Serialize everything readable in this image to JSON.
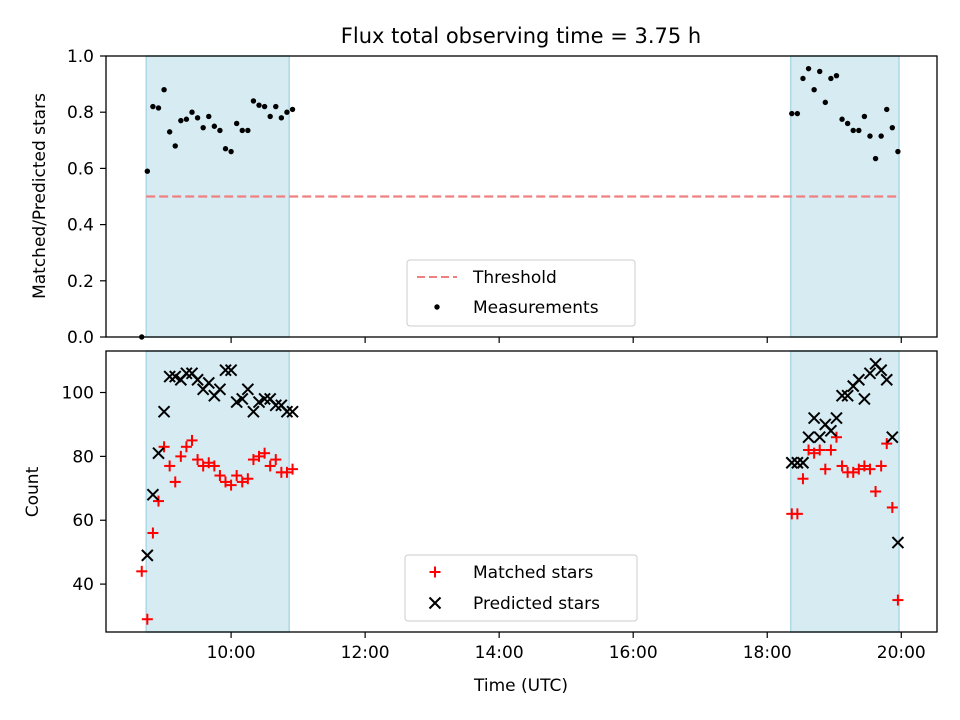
{
  "title": "Flux total observing time = 3.75 h",
  "xlabel": "Time (UTC)",
  "x_ticks": [
    "10:00",
    "12:00",
    "14:00",
    "16:00",
    "18:00",
    "20:00"
  ],
  "colors": {
    "band": "#add8e6",
    "threshold": "#f08080",
    "measurement": "#000000",
    "matched": "#ff0000",
    "predicted": "#000000"
  },
  "chart_data": [
    {
      "type": "scatter",
      "ylabel": "Matched/Predicted stars",
      "ylim": [
        0,
        1.0
      ],
      "xlim": [
        "08:08",
        "20:32"
      ],
      "y_ticks": [
        "0.0",
        "0.2",
        "0.4",
        "0.6",
        "0.8",
        "1.0"
      ],
      "shaded_intervals": [
        [
          "08:44",
          "10:52"
        ],
        [
          "18:21",
          "19:58"
        ]
      ],
      "legend": {
        "placement": "lower-center",
        "entries": [
          "Threshold",
          "Measurements"
        ]
      },
      "threshold": {
        "name": "Threshold",
        "y": 0.5,
        "x_range": [
          "08:44",
          "19:58"
        ],
        "style": "dashed"
      },
      "series": [
        {
          "name": "Measurements",
          "points": [
            [
              "08:40",
              0.0
            ],
            [
              "08:45",
              0.59
            ],
            [
              "08:50",
              0.82
            ],
            [
              "08:55",
              0.815
            ],
            [
              "09:00",
              0.88
            ],
            [
              "09:05",
              0.73
            ],
            [
              "09:10",
              0.68
            ],
            [
              "09:15",
              0.77
            ],
            [
              "09:20",
              0.775
            ],
            [
              "09:25",
              0.8
            ],
            [
              "09:30",
              0.78
            ],
            [
              "09:35",
              0.745
            ],
            [
              "09:40",
              0.785
            ],
            [
              "09:45",
              0.75
            ],
            [
              "09:50",
              0.735
            ],
            [
              "09:55",
              0.67
            ],
            [
              "10:00",
              0.66
            ],
            [
              "10:05",
              0.76
            ],
            [
              "10:10",
              0.735
            ],
            [
              "10:15",
              0.735
            ],
            [
              "10:20",
              0.84
            ],
            [
              "10:25",
              0.825
            ],
            [
              "10:30",
              0.82
            ],
            [
              "10:35",
              0.785
            ],
            [
              "10:40",
              0.82
            ],
            [
              "10:45",
              0.78
            ],
            [
              "10:50",
              0.8
            ],
            [
              "10:55",
              0.81
            ],
            [
              "18:22",
              0.795
            ],
            [
              "18:27",
              0.795
            ],
            [
              "18:32",
              0.92
            ],
            [
              "18:37",
              0.955
            ],
            [
              "18:42",
              0.88
            ],
            [
              "18:47",
              0.945
            ],
            [
              "18:52",
              0.835
            ],
            [
              "18:57",
              0.92
            ],
            [
              "19:02",
              0.93
            ],
            [
              "19:07",
              0.775
            ],
            [
              "19:12",
              0.76
            ],
            [
              "19:17",
              0.735
            ],
            [
              "19:22",
              0.735
            ],
            [
              "19:27",
              0.785
            ],
            [
              "19:32",
              0.715
            ],
            [
              "19:37",
              0.635
            ],
            [
              "19:42",
              0.715
            ],
            [
              "19:47",
              0.81
            ],
            [
              "19:52",
              0.745
            ],
            [
              "19:57",
              0.66
            ]
          ]
        }
      ]
    },
    {
      "type": "scatter",
      "ylabel": "Count",
      "ylim": [
        25,
        113
      ],
      "xlim": [
        "08:08",
        "20:32"
      ],
      "y_ticks": [
        "40",
        "60",
        "80",
        "100"
      ],
      "shaded_intervals": [
        [
          "08:44",
          "10:52"
        ],
        [
          "18:21",
          "19:58"
        ]
      ],
      "legend": {
        "placement": "lower-center",
        "entries": [
          "Matched stars",
          "Predicted stars"
        ]
      },
      "series": [
        {
          "name": "Matched stars",
          "marker": "plus",
          "points": [
            [
              "08:40",
              44
            ],
            [
              "08:45",
              29
            ],
            [
              "08:50",
              56
            ],
            [
              "08:55",
              66
            ],
            [
              "09:00",
              83
            ],
            [
              "09:05",
              77
            ],
            [
              "09:10",
              72
            ],
            [
              "09:15",
              80
            ],
            [
              "09:20",
              83
            ],
            [
              "09:25",
              85
            ],
            [
              "09:30",
              79
            ],
            [
              "09:35",
              77
            ],
            [
              "09:40",
              78
            ],
            [
              "09:45",
              77
            ],
            [
              "09:50",
              74
            ],
            [
              "09:55",
              72
            ],
            [
              "10:00",
              71
            ],
            [
              "10:05",
              74
            ],
            [
              "10:10",
              72
            ],
            [
              "10:15",
              73
            ],
            [
              "10:20",
              79
            ],
            [
              "10:25",
              80
            ],
            [
              "10:30",
              81
            ],
            [
              "10:35",
              77
            ],
            [
              "10:40",
              79
            ],
            [
              "10:45",
              75
            ],
            [
              "10:50",
              75
            ],
            [
              "10:55",
              76
            ],
            [
              "18:22",
              62
            ],
            [
              "18:27",
              62
            ],
            [
              "18:32",
              73
            ],
            [
              "18:37",
              82
            ],
            [
              "18:42",
              81
            ],
            [
              "18:47",
              82
            ],
            [
              "18:52",
              76
            ],
            [
              "18:57",
              82
            ],
            [
              "19:02",
              86
            ],
            [
              "19:07",
              77
            ],
            [
              "19:12",
              75
            ],
            [
              "19:17",
              75
            ],
            [
              "19:22",
              76
            ],
            [
              "19:27",
              77
            ],
            [
              "19:32",
              76
            ],
            [
              "19:37",
              69
            ],
            [
              "19:42",
              77
            ],
            [
              "19:47",
              84
            ],
            [
              "19:52",
              64
            ],
            [
              "19:57",
              35
            ]
          ]
        },
        {
          "name": "Predicted stars",
          "marker": "cross",
          "points": [
            [
              "08:45",
              49
            ],
            [
              "08:50",
              68
            ],
            [
              "08:55",
              81
            ],
            [
              "09:00",
              94
            ],
            [
              "09:05",
              105
            ],
            [
              "09:10",
              105
            ],
            [
              "09:15",
              104
            ],
            [
              "09:20",
              106
            ],
            [
              "09:25",
              106
            ],
            [
              "09:30",
              104
            ],
            [
              "09:35",
              101
            ],
            [
              "09:40",
              103
            ],
            [
              "09:45",
              99
            ],
            [
              "09:50",
              101
            ],
            [
              "09:55",
              107
            ],
            [
              "10:00",
              107
            ],
            [
              "10:05",
              97
            ],
            [
              "10:10",
              98
            ],
            [
              "10:15",
              101
            ],
            [
              "10:20",
              94
            ],
            [
              "10:25",
              97
            ],
            [
              "10:30",
              98
            ],
            [
              "10:35",
              98
            ],
            [
              "10:40",
              96
            ],
            [
              "10:45",
              96
            ],
            [
              "10:50",
              94
            ],
            [
              "10:55",
              94
            ],
            [
              "18:22",
              78
            ],
            [
              "18:27",
              78
            ],
            [
              "18:32",
              78
            ],
            [
              "18:37",
              86
            ],
            [
              "18:42",
              92
            ],
            [
              "18:47",
              86
            ],
            [
              "18:52",
              90
            ],
            [
              "18:57",
              88
            ],
            [
              "19:02",
              92
            ],
            [
              "19:07",
              99
            ],
            [
              "19:12",
              99
            ],
            [
              "19:17",
              102
            ],
            [
              "19:22",
              104
            ],
            [
              "19:27",
              98
            ],
            [
              "19:32",
              106
            ],
            [
              "19:37",
              109
            ],
            [
              "19:42",
              107
            ],
            [
              "19:47",
              104
            ],
            [
              "19:52",
              86
            ],
            [
              "19:57",
              53
            ]
          ]
        }
      ]
    }
  ]
}
